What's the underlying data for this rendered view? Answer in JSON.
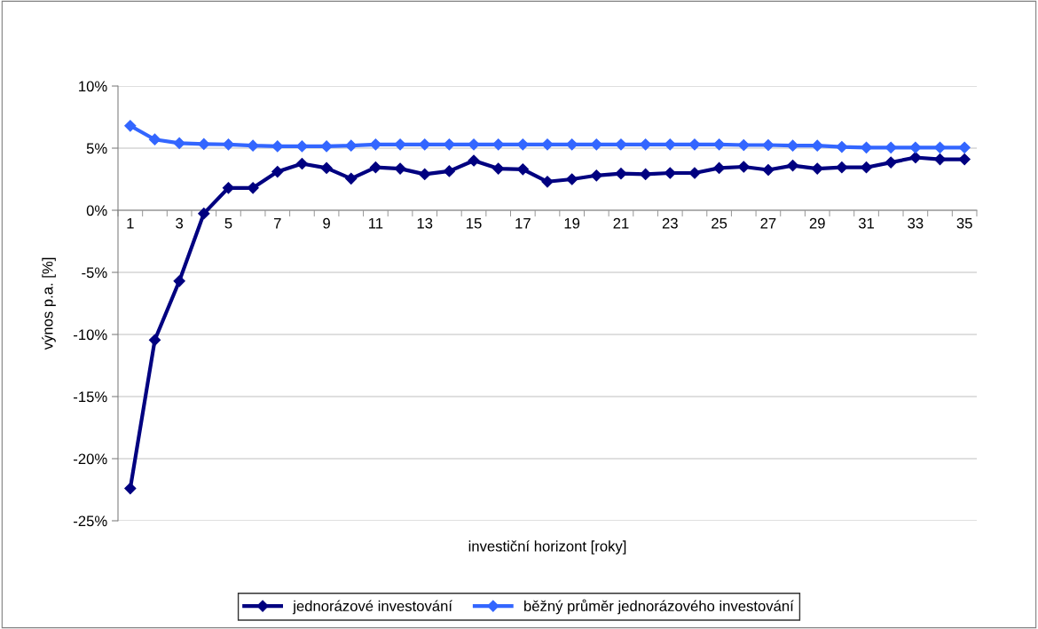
{
  "chart_data": {
    "type": "line",
    "xlabel": "investiční horizont [roky]",
    "ylabel": "výnos p.a. [%]",
    "categories": [
      "1",
      null,
      "3",
      null,
      "5",
      null,
      "7",
      null,
      "9",
      null,
      "11",
      null,
      "13",
      null,
      "15",
      null,
      "17",
      null,
      "19",
      null,
      "21",
      null,
      "23",
      null,
      "25",
      null,
      "27",
      null,
      "29",
      null,
      "31",
      null,
      "33",
      null,
      "35"
    ],
    "series": [
      {
        "name": "jednorázové investování",
        "color": "#000080",
        "values": [
          -22.4,
          -10.45,
          -5.7,
          -0.26,
          1.8,
          1.8,
          3.1,
          3.75,
          3.4,
          2.55,
          3.45,
          3.35,
          2.9,
          3.15,
          4.0,
          3.35,
          3.3,
          2.3,
          2.5,
          2.8,
          2.95,
          2.9,
          3.0,
          3.0,
          3.4,
          3.5,
          3.25,
          3.6,
          3.35,
          3.45,
          3.45,
          3.85,
          4.25,
          4.1,
          4.1
        ]
      },
      {
        "name": "běžný průměr jednorázového investování",
        "color": "#3366ff",
        "values": [
          6.8,
          5.7,
          5.4,
          5.33,
          5.3,
          5.2,
          5.15,
          5.15,
          5.15,
          5.2,
          5.3,
          5.3,
          5.3,
          5.3,
          5.3,
          5.3,
          5.3,
          5.3,
          5.3,
          5.3,
          5.3,
          5.3,
          5.3,
          5.3,
          5.3,
          5.25,
          5.25,
          5.2,
          5.2,
          5.1,
          5.05,
          5.05,
          5.05,
          5.05,
          5.05
        ]
      }
    ],
    "ylim": [
      -25,
      10
    ],
    "yticks": [
      {
        "value": -25,
        "label": "-25%"
      },
      {
        "value": -20,
        "label": "-20%"
      },
      {
        "value": -15,
        "label": "-15%"
      },
      {
        "value": -10,
        "label": "-10%"
      },
      {
        "value": -5,
        "label": "-5%"
      },
      {
        "value": 0,
        "label": "0%"
      },
      {
        "value": 5,
        "label": "5%"
      },
      {
        "value": 10,
        "label": "10%"
      }
    ],
    "grid": "y",
    "legend": "bottom",
    "marker": "diamond",
    "line_style": "solid"
  }
}
